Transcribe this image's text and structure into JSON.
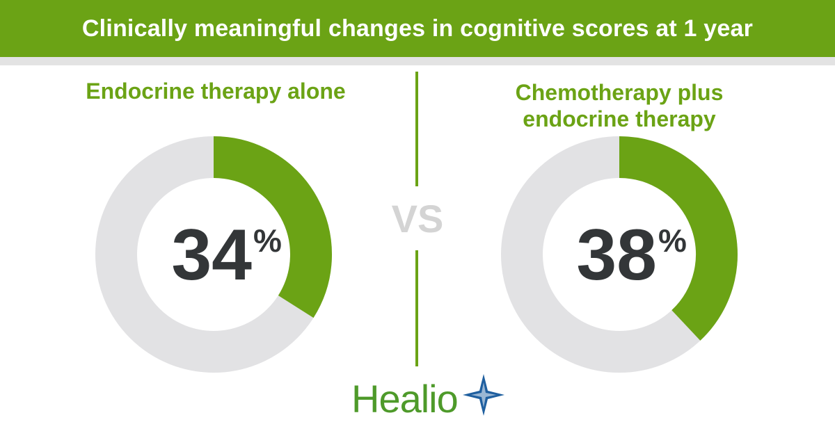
{
  "colors": {
    "accent": "#6ba315",
    "track": "#e2e2e4",
    "value_text": "#333638",
    "vs_text": "#d4d4d4",
    "logo_green": "#4e9a2a",
    "logo_blue": "#1f5f9f"
  },
  "header": {
    "title": "Clinically meaningful changes in cognitive scores at 1 year"
  },
  "vs_label": "VS",
  "logo": {
    "text": "Healio",
    "icon": "star-icon"
  },
  "chart_data": [
    {
      "type": "pie",
      "title": "Endocrine therapy alone",
      "value": 34,
      "value_label": "34",
      "unit": "%",
      "total": 100
    },
    {
      "type": "pie",
      "title_lines": [
        "Chemotherapy plus",
        "endocrine therapy"
      ],
      "value": 38,
      "value_label": "38",
      "unit": "%",
      "total": 100
    }
  ]
}
